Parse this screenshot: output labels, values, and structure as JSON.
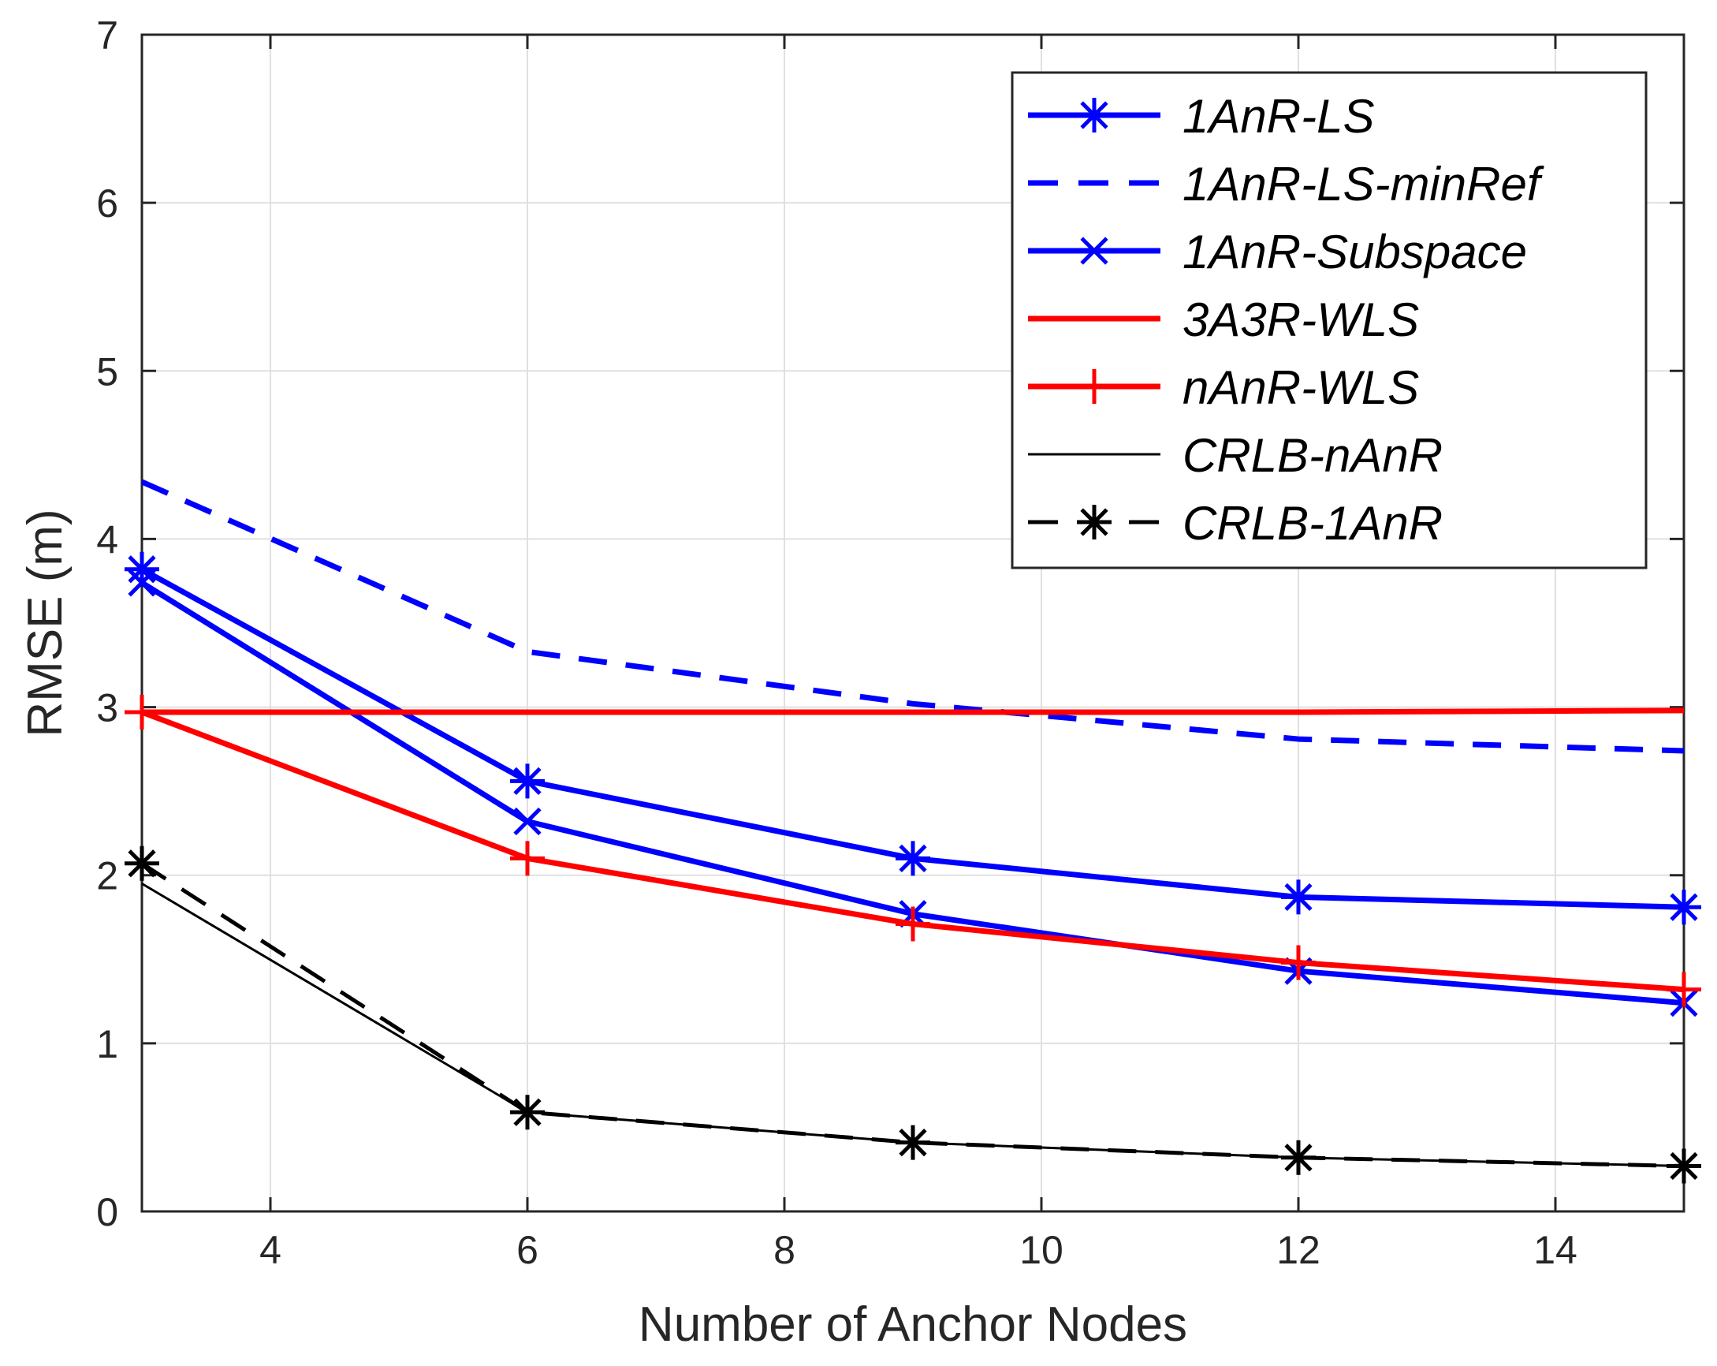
{
  "chart_data": {
    "type": "line",
    "title": "",
    "xlabel": "Number of Anchor Nodes",
    "ylabel": "RMSE (m)",
    "xlim": [
      3,
      15
    ],
    "ylim": [
      0,
      7
    ],
    "xticks": [
      4,
      6,
      8,
      10,
      12,
      14
    ],
    "yticks": [
      0,
      1,
      2,
      3,
      4,
      5,
      6,
      7
    ],
    "grid": true,
    "legend_position": "top-right",
    "x": [
      3,
      6,
      9,
      12,
      15
    ],
    "series": [
      {
        "name": "1AnR-LS",
        "values": [
          3.82,
          2.56,
          2.1,
          1.87,
          1.81
        ],
        "color": "#0000ff",
        "dash": "solid",
        "marker": "asterisk",
        "width": 7
      },
      {
        "name": "1AnR-LS-minRef",
        "values": [
          4.34,
          3.33,
          3.02,
          2.81,
          2.74
        ],
        "color": "#0000ff",
        "dash": "dashed",
        "marker": "none",
        "width": 7
      },
      {
        "name": "1AnR-Subspace",
        "values": [
          3.74,
          2.32,
          1.77,
          1.43,
          1.24
        ],
        "color": "#0000ff",
        "dash": "solid",
        "marker": "x",
        "width": 7
      },
      {
        "name": "3A3R-WLS",
        "values": [
          2.97,
          2.97,
          2.97,
          2.97,
          2.98
        ],
        "color": "#ff0000",
        "dash": "solid",
        "marker": "none",
        "width": 7
      },
      {
        "name": "nAnR-WLS",
        "values": [
          2.97,
          2.1,
          1.71,
          1.48,
          1.32
        ],
        "color": "#ff0000",
        "dash": "solid",
        "marker": "plus",
        "width": 7
      },
      {
        "name": "CRLB-nAnR",
        "values": [
          1.95,
          0.59,
          0.41,
          0.32,
          0.27
        ],
        "color": "#000000",
        "dash": "solid",
        "marker": "none",
        "width": 3
      },
      {
        "name": "CRLB-1AnR",
        "values": [
          2.07,
          0.59,
          0.41,
          0.32,
          0.27
        ],
        "color": "#000000",
        "dash": "dashed",
        "marker": "asterisk",
        "width": 5
      }
    ]
  }
}
